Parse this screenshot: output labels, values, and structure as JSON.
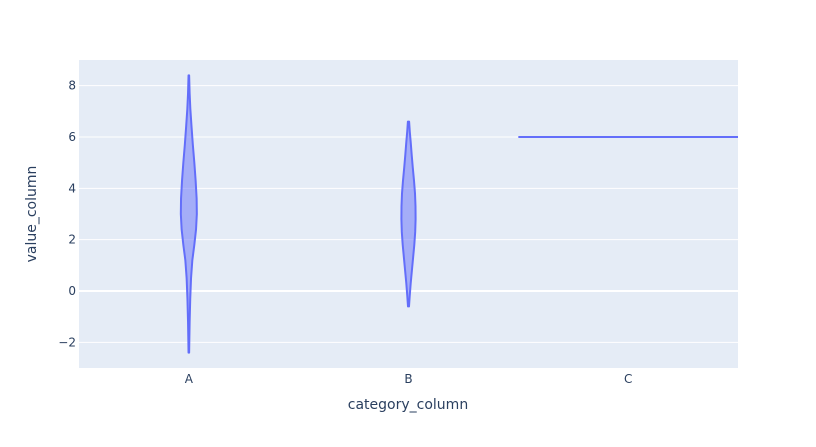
{
  "chart_data": {
    "type": "violin",
    "xlabel": "category_column",
    "ylabel": "value_column",
    "categories": [
      "A",
      "B",
      "C"
    ],
    "ylim": [
      -3,
      9
    ],
    "yticks": [
      -2,
      0,
      2,
      4,
      6,
      8
    ],
    "grid": true,
    "legend": "none",
    "colors": {
      "plot_bg": "#e5ecf6",
      "fill": "#636efa",
      "grid": "#ffffff",
      "text": "#2a3f5f"
    },
    "violins": [
      {
        "category": "A",
        "min": -2.4,
        "max": 8.4,
        "profile": [
          [
            -2.4,
            0.03
          ],
          [
            -1.9,
            0.05
          ],
          [
            -1.2,
            0.08
          ],
          [
            -0.3,
            0.14
          ],
          [
            0.5,
            0.22
          ],
          [
            1.2,
            0.35
          ],
          [
            1.8,
            0.55
          ],
          [
            2.4,
            0.72
          ],
          [
            3.0,
            0.8
          ],
          [
            3.6,
            0.78
          ],
          [
            4.3,
            0.68
          ],
          [
            5.0,
            0.55
          ],
          [
            5.7,
            0.4
          ],
          [
            6.4,
            0.27
          ],
          [
            7.1,
            0.15
          ],
          [
            7.7,
            0.08
          ],
          [
            8.4,
            0.03
          ]
        ]
      },
      {
        "category": "B",
        "min": -0.6,
        "max": 6.6,
        "profile": [
          [
            -0.6,
            0.05
          ],
          [
            -0.2,
            0.12
          ],
          [
            0.3,
            0.22
          ],
          [
            0.8,
            0.34
          ],
          [
            1.3,
            0.46
          ],
          [
            1.8,
            0.58
          ],
          [
            2.3,
            0.67
          ],
          [
            2.8,
            0.71
          ],
          [
            3.3,
            0.7
          ],
          [
            3.8,
            0.65
          ],
          [
            4.3,
            0.55
          ],
          [
            4.8,
            0.43
          ],
          [
            5.3,
            0.32
          ],
          [
            5.8,
            0.22
          ],
          [
            6.2,
            0.13
          ],
          [
            6.6,
            0.06
          ]
        ]
      },
      {
        "category": "C",
        "min": 6,
        "max": 6,
        "profile": [
          [
            6,
            1
          ]
        ]
      }
    ]
  }
}
